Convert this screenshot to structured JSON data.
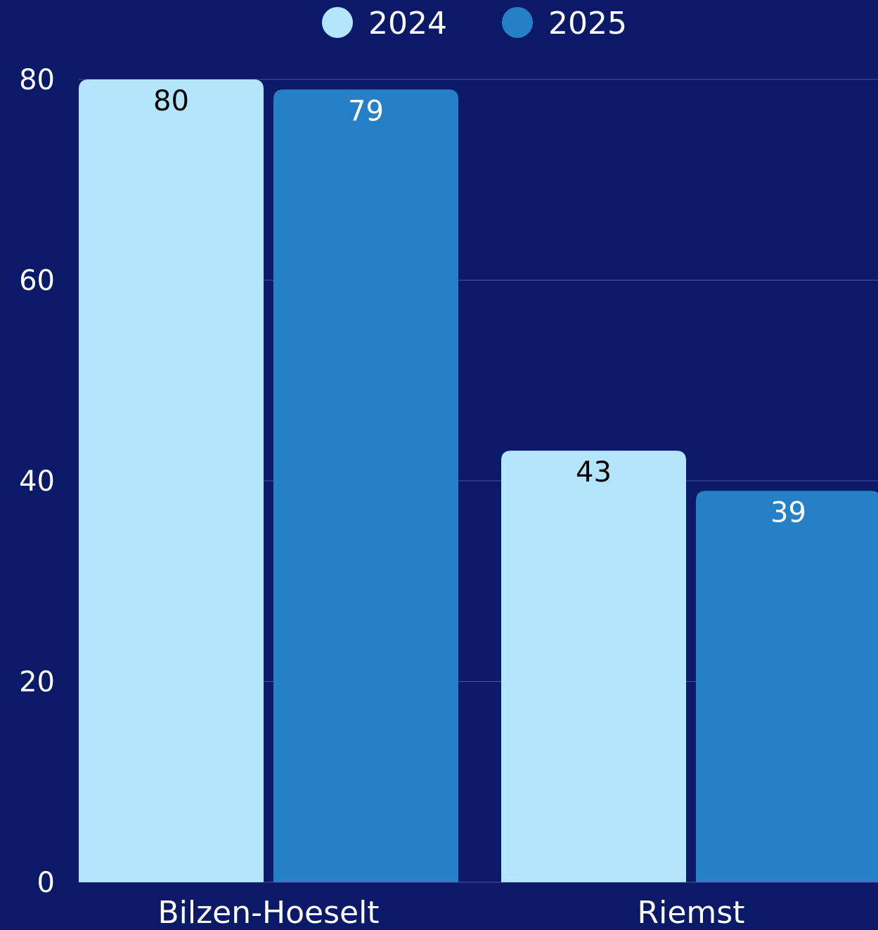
{
  "colors": {
    "background": "#0a1968",
    "series_2024": "#b3e5fc",
    "series_2025": "#2680c6",
    "label_on_2024": "#000000",
    "label_on_2025": "#ffffff",
    "text": "#ffffff",
    "grid": "#4a57a0"
  },
  "chart_data": {
    "type": "bar",
    "categories": [
      "Bilzen-Hoeselt",
      "Riemst"
    ],
    "series": [
      {
        "name": "2024",
        "values": [
          80,
          43
        ]
      },
      {
        "name": "2025",
        "values": [
          79,
          39
        ]
      }
    ],
    "y_ticks": [
      0,
      20,
      40,
      60,
      80
    ],
    "ylim": [
      0,
      80
    ],
    "grid": true,
    "legend_position": "top-center",
    "title": "",
    "xlabel": "",
    "ylabel": ""
  }
}
